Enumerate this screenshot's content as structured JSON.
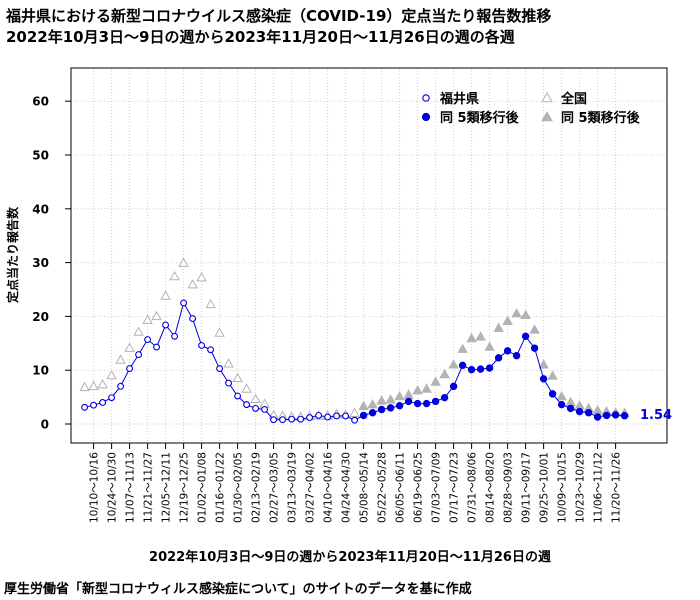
{
  "title_line1": "福井県における新型コロナウイルス感染症（COVID-19）定点当たり報告数推移",
  "title_line2": "2022年10月3日～9日の週から2023年11月20日～11月26日の週の各週",
  "source": "厚生労働省「新型コロナウィルス感染症について」のサイトのデータを基に作成",
  "last_value_label": "1.54",
  "colors": {
    "fukui": "#0000dd",
    "national": "#b3b3b3",
    "grid": "#cfcfcf"
  },
  "chart_data": {
    "type": "line",
    "xlabel": "2022年10月3日～9日の週から2023年11月20日～11月26日の週",
    "ylabel": "定点当たり報告数",
    "ylim": [
      -3,
      67
    ],
    "yticks": [
      0,
      10,
      20,
      30,
      40,
      50,
      60
    ],
    "grid": true,
    "legend_position": "top-right",
    "x_tick_labels": [
      "10/10～10/16",
      "10/24～10/30",
      "11/07～11/13",
      "11/21～11/27",
      "12/05～12/11",
      "12/19～12/25",
      "01/02～01/08",
      "01/16～01/22",
      "01/30～02/05",
      "02/13～02/19",
      "02/27～03/05",
      "03/13～03/19",
      "03/27～04/02",
      "04/10～04/16",
      "04/24～04/30",
      "05/08～05/14",
      "05/22～05/28",
      "06/05～06/11",
      "06/19～06/25",
      "07/03～07/09",
      "07/17～07/23",
      "07/31～08/06",
      "08/14～08/20",
      "08/28～09/03",
      "09/11～09/17",
      "09/25～10/01",
      "10/09～10/15",
      "10/23～10/29",
      "11/06～11/12",
      "11/20～11/26"
    ],
    "x_tick_week_index": [
      1,
      3,
      5,
      7,
      9,
      11,
      13,
      15,
      17,
      19,
      21,
      23,
      25,
      27,
      29,
      31,
      33,
      35,
      37,
      39,
      41,
      43,
      45,
      47,
      49,
      51,
      53,
      55,
      57,
      59
    ],
    "mode_change_week_index": 31,
    "series": [
      {
        "name": "福井県",
        "marker": "open-circle",
        "values": [
          3.1,
          3.5,
          4.0,
          4.9,
          7.0,
          10.3,
          12.9,
          15.7,
          14.3,
          18.4,
          16.3,
          22.5,
          19.6,
          14.6,
          13.8,
          10.3,
          7.6,
          5.2,
          3.6,
          2.9,
          2.7,
          0.8,
          0.8,
          0.9,
          0.9,
          1.2,
          1.6,
          1.3,
          1.5,
          1.5,
          0.7
        ]
      },
      {
        "name": "全国",
        "marker": "open-triangle",
        "values": [
          6.8,
          7.0,
          7.3,
          9.0,
          11.9,
          14.1,
          17.1,
          19.3,
          20.0,
          23.8,
          27.4,
          29.9,
          25.9,
          27.2,
          22.2,
          16.9,
          11.2,
          8.5,
          6.5,
          4.6,
          3.7,
          1.6,
          1.5,
          1.3,
          1.3,
          1.4,
          1.5,
          1.5,
          1.8,
          1.7,
          2.0
        ]
      },
      {
        "name": "同 5類移行後",
        "marker": "filled-circle",
        "group": "福井県",
        "values": [
          1.6,
          2.1,
          2.7,
          3.0,
          3.4,
          4.2,
          3.8,
          3.8,
          4.2,
          4.9,
          7.0,
          10.9,
          10.1,
          10.2,
          10.4,
          12.3,
          13.6,
          12.7,
          16.3,
          14.1,
          8.4,
          5.6,
          3.6,
          2.9,
          2.3,
          2.1,
          1.3,
          1.6,
          1.7,
          1.54
        ]
      },
      {
        "name": "同 5類移行後",
        "marker": "filled-triangle",
        "group": "全国",
        "values": [
          3.3,
          3.6,
          4.3,
          4.5,
          5.1,
          5.4,
          6.2,
          6.5,
          7.8,
          9.2,
          11.0,
          13.9,
          15.9,
          16.2,
          14.3,
          17.8,
          19.1,
          20.5,
          20.2,
          17.5,
          11.0,
          8.9,
          5.1,
          4.0,
          3.4,
          2.9,
          2.5,
          2.3,
          2.1,
          2.0
        ]
      }
    ]
  }
}
